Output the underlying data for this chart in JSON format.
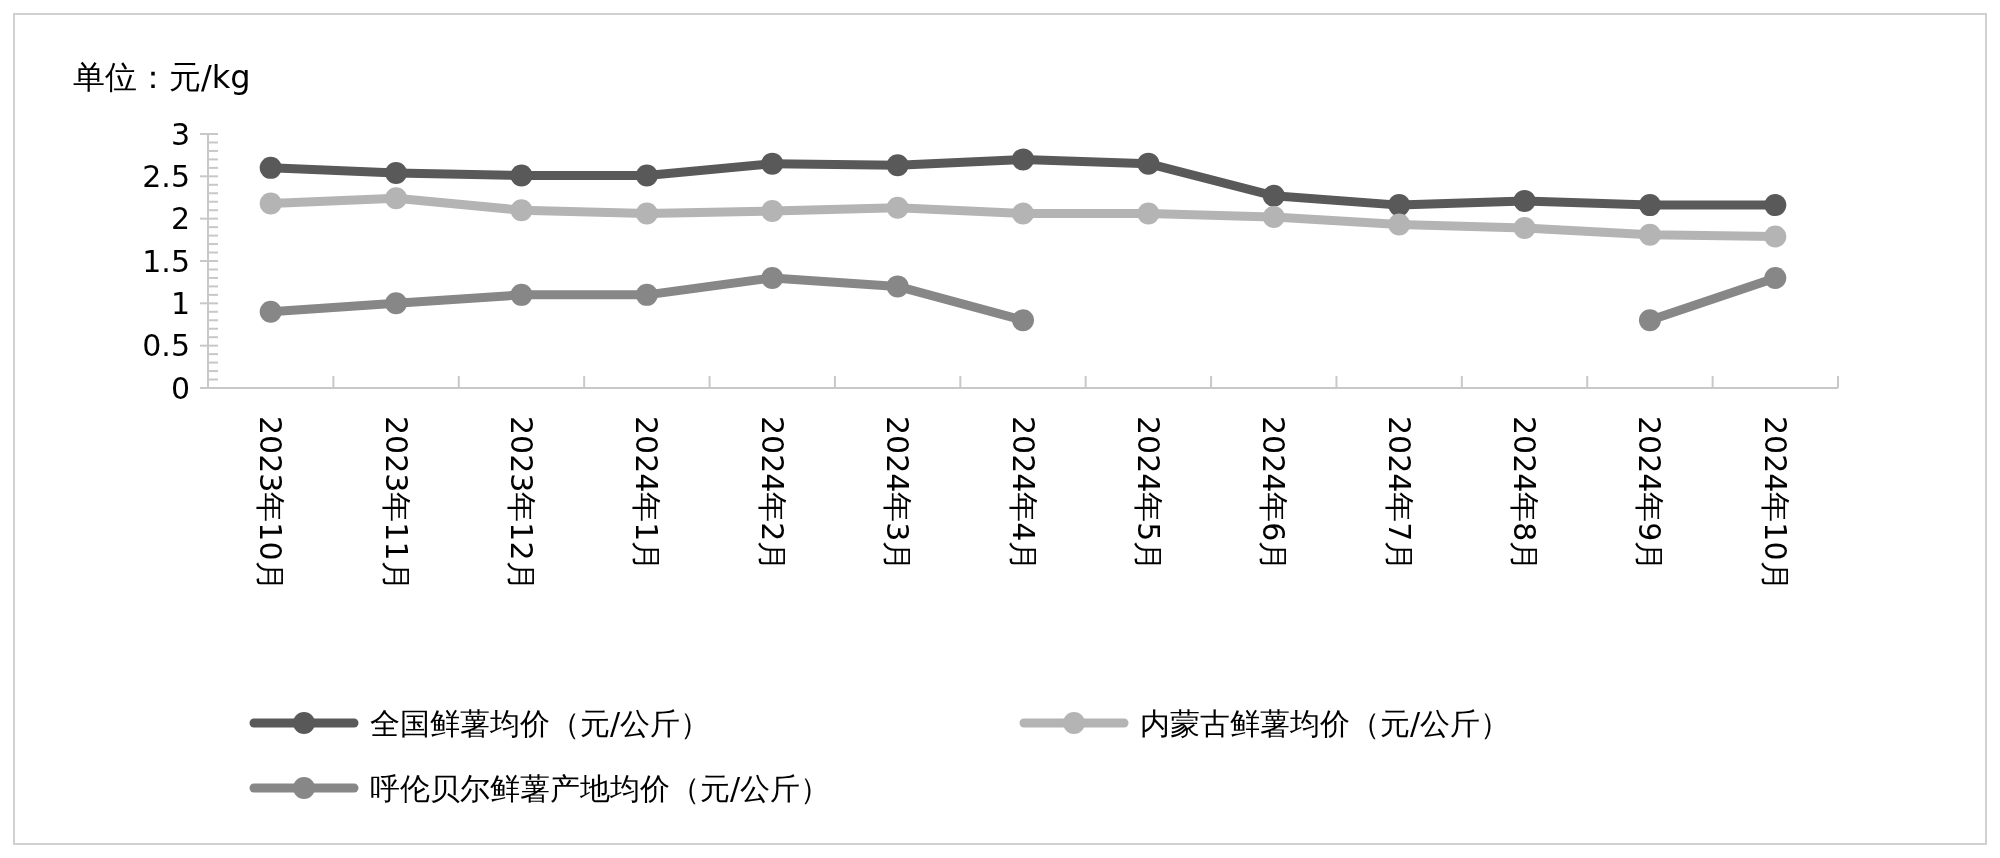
{
  "chart_data": {
    "type": "line",
    "ylabel": "单位：元/kg",
    "categories": [
      "2023年10月",
      "2023年11月",
      "2023年12月",
      "2024年1月",
      "2024年2月",
      "2024年3月",
      "2024年4月",
      "2024年5月",
      "2024年6月",
      "2024年7月",
      "2024年8月",
      "2024年9月",
      "2024年10月"
    ],
    "series": [
      {
        "name": "全国鲜薯均价（元/公斤）",
        "color": "#595959",
        "values": [
          2.6,
          2.54,
          2.51,
          2.51,
          2.65,
          2.63,
          2.7,
          2.65,
          2.27,
          2.16,
          2.21,
          2.16,
          2.16
        ]
      },
      {
        "name": "内蒙古鲜薯均价（元/公斤）",
        "color": "#b4b4b4",
        "values": [
          2.18,
          2.24,
          2.1,
          2.06,
          2.09,
          2.13,
          2.06,
          2.06,
          2.02,
          1.93,
          1.89,
          1.81,
          1.79
        ]
      },
      {
        "name": "呼伦贝尔鲜薯产地均价（元/公斤）",
        "color": "#878787",
        "values": [
          0.9,
          1.0,
          1.1,
          1.1,
          1.3,
          1.2,
          0.8,
          null,
          null,
          null,
          null,
          0.8,
          1.3
        ]
      }
    ],
    "ylim": [
      0,
      3
    ],
    "yticks": [
      0,
      0.5,
      1,
      1.5,
      2,
      2.5,
      3
    ],
    "marker": "circle",
    "legend": "bottom",
    "grid": false
  }
}
